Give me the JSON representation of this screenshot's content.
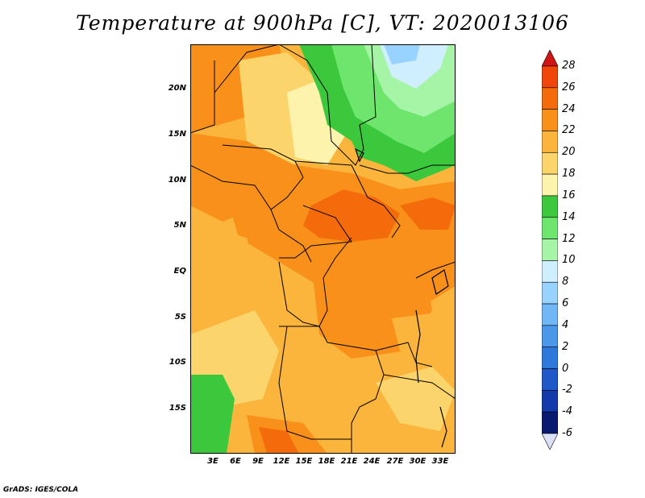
{
  "title": "Temperature at 900hPa [C], VT: 2020013106",
  "footer": "GrADS: IGES/COLA",
  "map": {
    "lat_labels": [
      "20N",
      "15N",
      "10N",
      "5N",
      "EQ",
      "5S",
      "10S",
      "15S"
    ],
    "lon_labels": [
      "3E",
      "6E",
      "9E",
      "12E",
      "15E",
      "18E",
      "21E",
      "24E",
      "27E",
      "30E",
      "33E"
    ]
  },
  "colorbar": {
    "levels": [
      "28",
      "26",
      "24",
      "22",
      "20",
      "18",
      "16",
      "14",
      "12",
      "10",
      "8",
      "6",
      "4",
      "2",
      "0",
      "-2",
      "-4",
      "-6"
    ],
    "colors": [
      "#e31a1c",
      "#f0460c",
      "#f46b0c",
      "#f8901a",
      "#fbb43c",
      "#fcd46c",
      "#fdf3ac",
      "#3cc83c",
      "#6ee66e",
      "#a6f4a6",
      "#cfefff",
      "#98d2ff",
      "#6fb7f5",
      "#4b98ea",
      "#2f78db",
      "#1f58c9",
      "#133aab",
      "#0a1970"
    ],
    "top_color": "#d21414",
    "bottom_color": "#dde1f7"
  },
  "chart_data": {
    "type": "heatmap",
    "title": "Temperature at 900hPa [C], VT: 2020013106",
    "unit": "C",
    "lon_range": [
      "0E",
      "36E"
    ],
    "lat_range": [
      "20S",
      "24N"
    ],
    "colorbar_levels": [
      -6,
      -4,
      -2,
      0,
      2,
      4,
      6,
      8,
      10,
      12,
      14,
      16,
      18,
      20,
      22,
      24,
      26,
      28
    ]
  }
}
